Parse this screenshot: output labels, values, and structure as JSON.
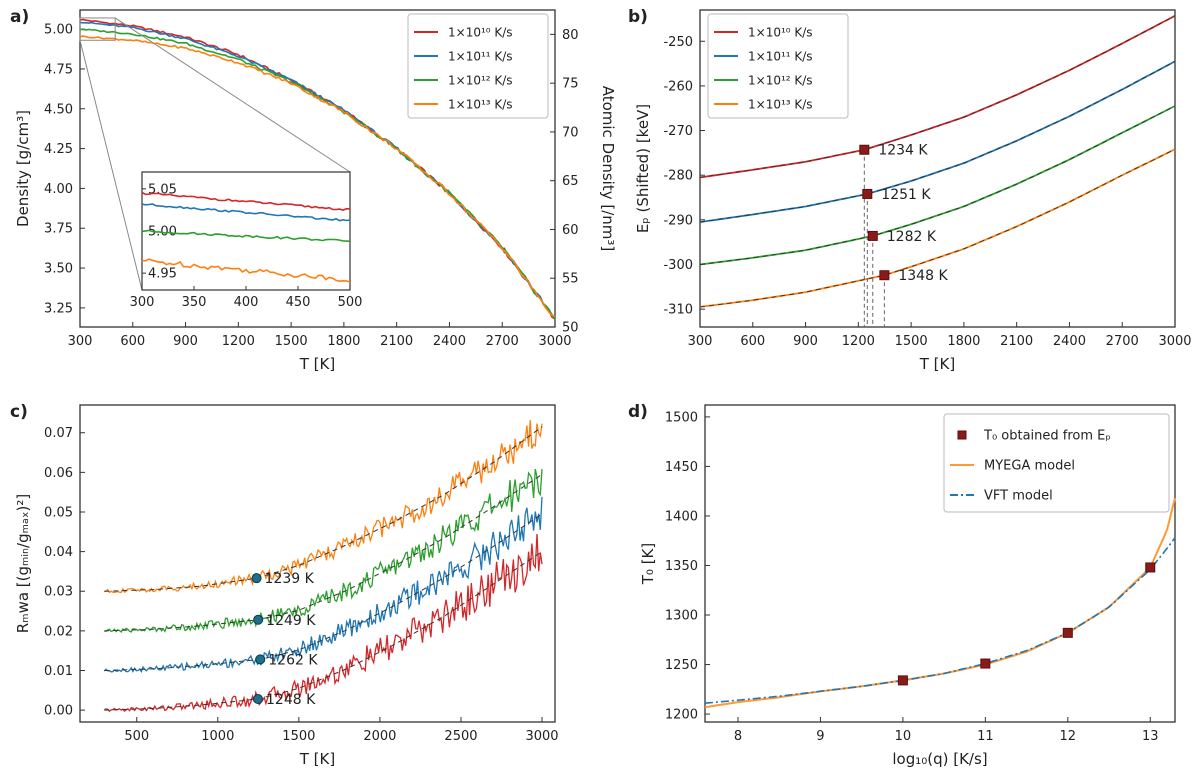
{
  "chart_data": [
    {
      "panel": "a)",
      "type": "line",
      "xlabel": "T [K]",
      "ylabel": "Density [g/cm³]",
      "ylabel_right": "Atomic Density [/nm³]",
      "xlim": [
        300,
        3000
      ],
      "ylim": [
        3.13,
        5.12
      ],
      "ylim_right": [
        50,
        82.5
      ],
      "xticks": [
        "300",
        "600",
        "900",
        "1200",
        "1500",
        "1800",
        "2100",
        "2400",
        "2700",
        "3000"
      ],
      "yticks": [
        "3.25",
        "3.50",
        "3.75",
        "4.00",
        "4.25",
        "4.50",
        "4.75",
        "5.00"
      ],
      "yticks_right": [
        "50",
        "55",
        "60",
        "65",
        "70",
        "75",
        "80"
      ],
      "legend_position": "top-right",
      "series": [
        {
          "name": "1×10¹⁰ K/s",
          "color": "#d62728",
          "x": [
            300,
            600,
            900,
            1200,
            1500,
            1800,
            2100,
            2400,
            2700,
            3000
          ],
          "y": [
            5.06,
            5.02,
            4.95,
            4.84,
            4.68,
            4.49,
            4.25,
            3.97,
            3.63,
            3.18
          ]
        },
        {
          "name": "1×10¹¹ K/s",
          "color": "#1f77b4",
          "x": [
            300,
            600,
            900,
            1200,
            1500,
            1800,
            2100,
            2400,
            2700,
            3000
          ],
          "y": [
            5.045,
            5.01,
            4.94,
            4.83,
            4.68,
            4.49,
            4.25,
            3.97,
            3.63,
            3.18
          ]
        },
        {
          "name": "1×10¹² K/s",
          "color": "#2ca02c",
          "x": [
            300,
            600,
            900,
            1200,
            1500,
            1800,
            2100,
            2400,
            2700,
            3000
          ],
          "y": [
            5.0,
            4.97,
            4.91,
            4.81,
            4.67,
            4.48,
            4.25,
            3.97,
            3.63,
            3.18
          ]
        },
        {
          "name": "1×10¹³ K/s",
          "color": "#ff7f0e",
          "x": [
            300,
            600,
            900,
            1200,
            1500,
            1800,
            2100,
            2400,
            2700,
            3000
          ],
          "y": [
            4.955,
            4.93,
            4.88,
            4.79,
            4.66,
            4.48,
            4.25,
            3.97,
            3.63,
            3.18
          ]
        }
      ],
      "inset": {
        "xlim": [
          300,
          500
        ],
        "ylim": [
          4.93,
          5.07
        ],
        "xticks": [
          "300",
          "350",
          "400",
          "450",
          "500"
        ],
        "yticks": [
          "4.95",
          "5.00",
          "5.05"
        ],
        "series": [
          {
            "color": "#d62728",
            "x": [
              300,
              500
            ],
            "y": [
              5.045,
              5.025
            ]
          },
          {
            "color": "#1f77b4",
            "x": [
              300,
              500
            ],
            "y": [
              5.032,
              5.012
            ]
          },
          {
            "color": "#2ca02c",
            "x": [
              300,
              500
            ],
            "y": [
              5.0,
              4.988
            ]
          },
          {
            "color": "#ff7f0e",
            "x": [
              300,
              500
            ],
            "y": [
              4.965,
              4.942
            ]
          }
        ]
      }
    },
    {
      "panel": "b)",
      "type": "line",
      "xlabel": "T [K]",
      "ylabel": "Eₚ (Shifted) [keV]",
      "xlim": [
        300,
        3000
      ],
      "ylim": [
        -314,
        -243
      ],
      "xticks": [
        "300",
        "600",
        "900",
        "1200",
        "1500",
        "1800",
        "2100",
        "2400",
        "2700",
        "3000"
      ],
      "yticks": [
        "-250",
        "-260",
        "-270",
        "-280",
        "-290",
        "-300",
        "-310"
      ],
      "legend_position": "top-left",
      "series": [
        {
          "name": "1×10¹⁰ K/s",
          "color": "#d62728",
          "x": [
            300,
            600,
            900,
            1234,
            1500,
            1800,
            2100,
            2400,
            2700,
            3000
          ],
          "y": [
            -280.5,
            -278.8,
            -277.0,
            -274.3,
            -271.0,
            -267.0,
            -262.0,
            -256.5,
            -250.5,
            -244.3
          ]
        },
        {
          "name": "1×10¹¹ K/s",
          "color": "#1f77b4",
          "x": [
            300,
            600,
            900,
            1251,
            1500,
            1800,
            2100,
            2400,
            2700,
            3000
          ],
          "y": [
            -290.5,
            -288.8,
            -287.0,
            -284.2,
            -281.3,
            -277.3,
            -272.3,
            -266.8,
            -260.8,
            -254.5
          ]
        },
        {
          "name": "1×10¹² K/s",
          "color": "#2ca02c",
          "x": [
            300,
            600,
            900,
            1282,
            1500,
            1800,
            2100,
            2400,
            2700,
            3000
          ],
          "y": [
            -300.0,
            -298.5,
            -296.8,
            -293.6,
            -291.0,
            -287.0,
            -282.0,
            -276.5,
            -270.5,
            -264.5
          ]
        },
        {
          "name": "1×10¹³ K/s",
          "color": "#ff7f0e",
          "x": [
            300,
            600,
            900,
            1348,
            1500,
            1800,
            2100,
            2400,
            2700,
            3000
          ],
          "y": [
            -309.5,
            -308.0,
            -306.2,
            -302.4,
            -300.5,
            -296.5,
            -291.5,
            -286.0,
            -280.0,
            -274.2
          ]
        }
      ],
      "markers": [
        {
          "x": 1234,
          "y": -274.3,
          "label": "1234 K"
        },
        {
          "x": 1251,
          "y": -284.2,
          "label": "1251 K"
        },
        {
          "x": 1282,
          "y": -293.6,
          "label": "1282 K"
        },
        {
          "x": 1348,
          "y": -302.4,
          "label": "1348 K"
        }
      ]
    },
    {
      "panel": "c)",
      "type": "line",
      "xlabel": "T [K]",
      "ylabel": "Rₘwa [(gₘᵢₙ/gₘₐₓ)²]",
      "xlim": [
        150,
        3080
      ],
      "ylim": [
        -0.003,
        0.077
      ],
      "xticks": [
        "500",
        "1000",
        "1500",
        "2000",
        "2500",
        "3000"
      ],
      "yticks": [
        "0.00",
        "0.01",
        "0.02",
        "0.03",
        "0.04",
        "0.05",
        "0.06",
        "0.07"
      ],
      "series": [
        {
          "color": "#d62728",
          "x": [
            300,
            600,
            900,
            1248,
            1500,
            1800,
            2100,
            2400,
            2700,
            3000
          ],
          "y": [
            0.0,
            0.0004,
            0.0013,
            0.0028,
            0.0055,
            0.0105,
            0.0168,
            0.0238,
            0.0318,
            0.04
          ]
        },
        {
          "color": "#1f77b4",
          "x": [
            300,
            600,
            900,
            1262,
            1500,
            1800,
            2100,
            2400,
            2700,
            3000
          ],
          "y": [
            0.01,
            0.0104,
            0.0113,
            0.0128,
            0.0152,
            0.0203,
            0.0266,
            0.0335,
            0.0413,
            0.0495
          ]
        },
        {
          "color": "#2ca02c",
          "x": [
            300,
            600,
            900,
            1249,
            1500,
            1800,
            2100,
            2400,
            2700,
            3000
          ],
          "y": [
            0.02,
            0.0204,
            0.0213,
            0.0228,
            0.0252,
            0.0303,
            0.0366,
            0.0435,
            0.0513,
            0.0595
          ]
        },
        {
          "color": "#ff7f0e",
          "x": [
            300,
            600,
            900,
            1239,
            1500,
            1800,
            2100,
            2400,
            2700,
            3000
          ],
          "y": [
            0.03,
            0.0304,
            0.0313,
            0.0333,
            0.0365,
            0.0418,
            0.0478,
            0.0545,
            0.0625,
            0.0715
          ]
        }
      ],
      "markers": [
        {
          "x": 1239,
          "y": 0.0333,
          "label": "1239 K"
        },
        {
          "x": 1249,
          "y": 0.0228,
          "label": "1249 K"
        },
        {
          "x": 1262,
          "y": 0.0128,
          "label": "1262 K"
        },
        {
          "x": 1248,
          "y": 0.0028,
          "label": "1248 K"
        }
      ]
    },
    {
      "panel": "d)",
      "type": "scatter",
      "xlabel": "log₁₀(q) [K/s]",
      "ylabel": "T₀ [K]",
      "xlim": [
        7.6,
        13.3
      ],
      "ylim": [
        1192,
        1512
      ],
      "xticks": [
        "8",
        "9",
        "10",
        "11",
        "12",
        "13"
      ],
      "yticks": [
        "1200",
        "1250",
        "1300",
        "1350",
        "1400",
        "1450",
        "1500"
      ],
      "legend_position": "top-right",
      "points": {
        "name": "T₀ obtained from Eₚ",
        "color": "#8b1a1a",
        "x": [
          10,
          11,
          12,
          13
        ],
        "y": [
          1234,
          1251,
          1282,
          1348
        ]
      },
      "series": [
        {
          "name": "MYEGA model",
          "color": "#ff9933",
          "x": [
            7.6,
            8,
            8.5,
            9,
            9.5,
            10,
            10.5,
            11,
            11.5,
            12,
            12.5,
            13,
            13.2,
            13.3
          ],
          "y": [
            1207,
            1212,
            1217,
            1223,
            1228,
            1234,
            1241,
            1250,
            1263,
            1282,
            1308,
            1348,
            1385,
            1418
          ]
        },
        {
          "name": "VFT model",
          "color": "#1f77b4",
          "x": [
            7.6,
            8,
            8.5,
            9,
            9.5,
            10,
            10.5,
            11,
            11.5,
            12,
            12.5,
            13,
            13.2,
            13.3
          ],
          "y": [
            1211,
            1214,
            1218,
            1223,
            1228,
            1234,
            1241,
            1251,
            1264,
            1282,
            1308,
            1346,
            1367,
            1378
          ]
        }
      ]
    }
  ]
}
